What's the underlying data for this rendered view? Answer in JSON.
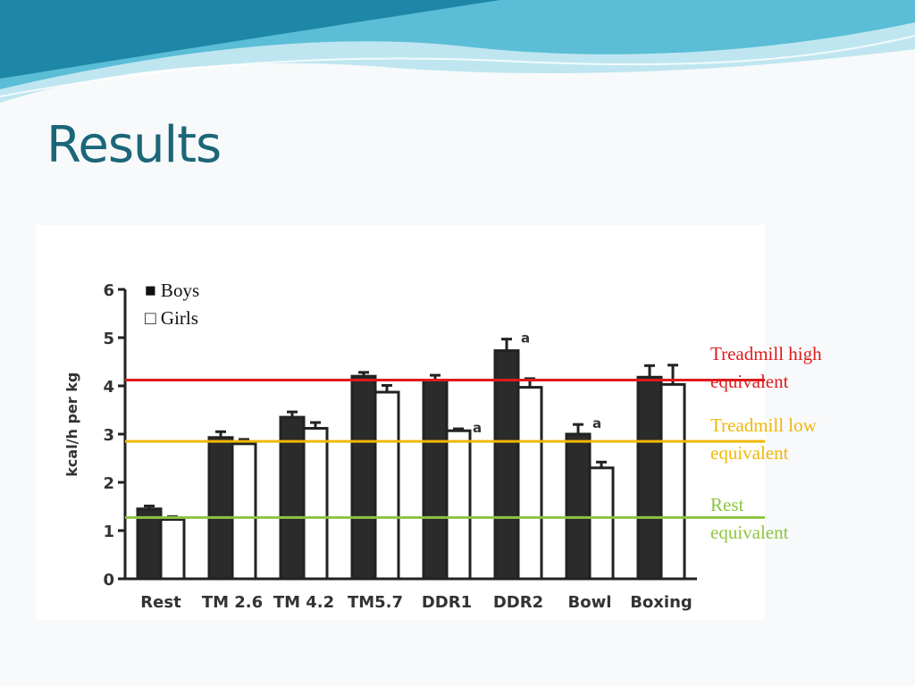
{
  "slide": {
    "title": "Results"
  },
  "theme": {
    "title_color": "#1b6678",
    "wave_light": "#bfe6f0",
    "wave_mid": "#5bbdd6",
    "wave_dark": "#1e87a8"
  },
  "chart_data": {
    "type": "bar",
    "ylabel": "kcal/h per kg",
    "xlabel": "",
    "ylim": [
      0,
      6
    ],
    "yticks": [
      0,
      1,
      2,
      3,
      4,
      5,
      6
    ],
    "categories": [
      "Rest",
      "TM 2.6",
      "TM 4.2",
      "TM5.7",
      "DDR1",
      "DDR2",
      "Bowl",
      "Boxing"
    ],
    "series": [
      {
        "name": "Boys",
        "legend_symbol": "■",
        "color": "#2b2b2b",
        "values": [
          1.45,
          2.93,
          3.35,
          4.2,
          4.12,
          4.73,
          3.0,
          4.18
        ],
        "errors": [
          0.06,
          0.12,
          0.11,
          0.08,
          0.1,
          0.24,
          0.2,
          0.24
        ]
      },
      {
        "name": "Girls",
        "legend_symbol": "□",
        "color": "#ffffff",
        "values": [
          1.23,
          2.8,
          3.12,
          3.87,
          3.07,
          3.97,
          2.3,
          4.03
        ],
        "errors": [
          0.06,
          0.09,
          0.12,
          0.14,
          0.04,
          0.18,
          0.12,
          0.4
        ]
      }
    ],
    "annotations": [
      {
        "category": "DDR1",
        "series": "Girls",
        "text": "a"
      },
      {
        "category": "DDR2",
        "series": "Boys",
        "text": "a"
      },
      {
        "category": "Bowl",
        "series": "Boys",
        "text": "a"
      }
    ],
    "reference_lines": [
      {
        "id": "high",
        "value": 4.12,
        "label_lines": [
          "Treadmill high",
          "equivalent"
        ],
        "color": "#e01b1b"
      },
      {
        "id": "low",
        "value": 2.85,
        "label_lines": [
          "Treadmill low",
          "equivalent"
        ],
        "color": "#f2b705"
      },
      {
        "id": "rest",
        "value": 1.27,
        "label_lines": [
          "Rest",
          "equivalent"
        ],
        "color": "#8cc63f"
      }
    ],
    "grid": false,
    "legend_position": "top-left"
  }
}
